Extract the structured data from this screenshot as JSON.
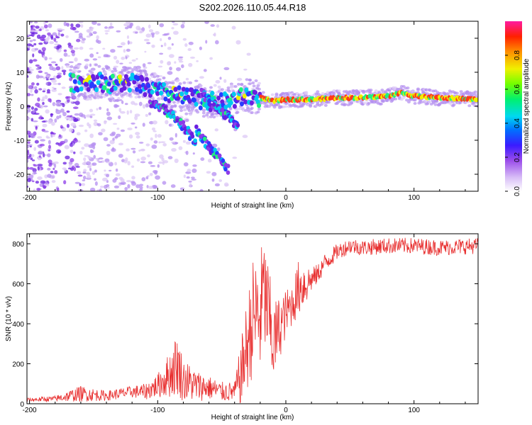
{
  "title": "S202.2026.110.05.44.R18",
  "chart_data": [
    {
      "type": "heatmap",
      "xlabel": "Height of straight line (km)",
      "ylabel": "Frequency (Hz)",
      "xlim": [
        -202,
        150
      ],
      "ylim": [
        -25,
        25
      ],
      "x_ticks": [
        -200,
        -100,
        0,
        100
      ],
      "y_ticks": [
        -20,
        -10,
        0,
        10,
        20
      ],
      "colorbar": {
        "label": "Normalized spectral amplitude",
        "range": [
          0,
          1
        ],
        "ticks": [
          "0.0",
          "0.2",
          "0.4",
          "0.6",
          "0.8"
        ],
        "colors": [
          "#ffffff",
          "#c9a8f0",
          "#8a2be2",
          "#0000ff",
          "#00c8ff",
          "#00ff66",
          "#ffff00",
          "#ff8000",
          "#ff0000",
          "#ff1493"
        ]
      },
      "ridge": {
        "description_free": true,
        "x": [
          -165,
          -150,
          -135,
          -120,
          -105,
          -90,
          -75,
          -60,
          -50,
          -40,
          -30,
          -20,
          -10,
          0,
          20,
          40,
          60,
          80,
          90,
          100,
          120,
          150
        ],
        "freq": [
          7,
          7.5,
          6.5,
          7,
          5,
          3.5,
          2.5,
          1.5,
          1,
          2,
          3,
          2.5,
          1.5,
          2,
          2,
          2.5,
          2.5,
          3,
          4,
          3,
          2.5,
          2
        ]
      },
      "branches": [
        {
          "x": [
            -105,
            -90,
            -80,
            -70
          ],
          "freq": [
            1,
            -2,
            -6,
            -11
          ]
        },
        {
          "x": [
            -70,
            -60,
            -50,
            -45
          ],
          "freq": [
            -7,
            -12,
            -16,
            -19
          ]
        },
        {
          "x": [
            -65,
            -55,
            -45,
            -38
          ],
          "freq": [
            4,
            0,
            -3,
            -6
          ]
        }
      ]
    },
    {
      "type": "line",
      "xlabel": "Height of straight line (km)",
      "ylabel": "SNR (10 * v/v)",
      "xlim": [
        -202,
        150
      ],
      "ylim": [
        0,
        850
      ],
      "x_ticks": [
        -200,
        -100,
        0,
        100
      ],
      "y_ticks": [
        0,
        200,
        400,
        600,
        800
      ],
      "color": "#e83030",
      "series": [
        {
          "x": [
            -200,
            -180,
            -160,
            -140,
            -120,
            -110,
            -100,
            -90,
            -85,
            -80,
            -70,
            -60,
            -50,
            -40,
            -35,
            -30,
            -25,
            -20,
            -18,
            -15,
            -10,
            -5,
            0,
            5,
            10,
            15,
            20,
            25,
            30,
            40,
            50,
            60,
            80,
            100,
            120,
            150
          ],
          "y": [
            20,
            25,
            50,
            40,
            60,
            60,
            90,
            150,
            200,
            120,
            90,
            80,
            60,
            60,
            150,
            300,
            450,
            430,
            560,
            500,
            300,
            380,
            450,
            500,
            580,
            600,
            620,
            650,
            700,
            760,
            790,
            780,
            790,
            790,
            780,
            790
          ],
          "noise": [
            10,
            15,
            40,
            25,
            30,
            40,
            60,
            120,
            160,
            110,
            80,
            60,
            50,
            50,
            160,
            240,
            300,
            300,
            300,
            280,
            220,
            160,
            120,
            110,
            140,
            120,
            60,
            50,
            50,
            40,
            40,
            40,
            40,
            40,
            40,
            40
          ]
        }
      ]
    }
  ]
}
